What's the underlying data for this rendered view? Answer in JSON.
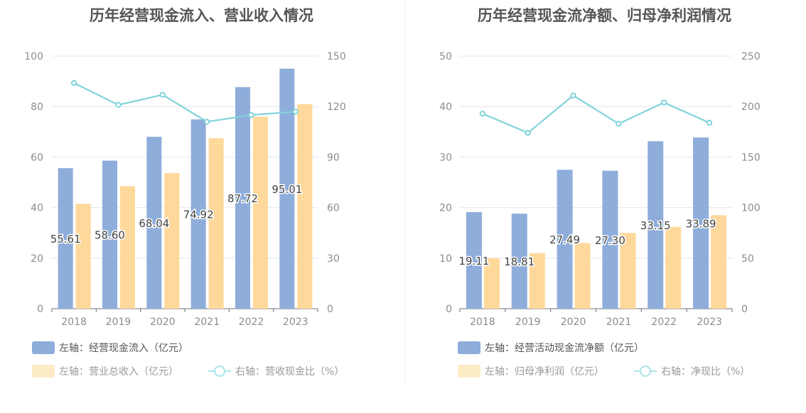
{
  "colors": {
    "inflow_bar": "#8eaddb",
    "revenue_bar": "#ffd99b",
    "ratio_line": "#82d4d9",
    "legend_swatch_2": "#fdebc6",
    "legend_line": "#a9e3e8",
    "grid": "#e3e6ef",
    "axis_text": "#8c8c8c",
    "label_text": "#444444"
  },
  "chart_data": [
    {
      "type": "bar",
      "title": "历年经营现金流入、营业收入情况",
      "categories": [
        "2018",
        "2019",
        "2020",
        "2021",
        "2022",
        "2023"
      ],
      "ylim_left": [
        0,
        100
      ],
      "yticks_left": [
        "0",
        "20",
        "40",
        "60",
        "80",
        "100"
      ],
      "ylim_right": [
        0,
        150
      ],
      "yticks_right": [
        "0",
        "30",
        "60",
        "90",
        "120",
        "150"
      ],
      "series": [
        {
          "name": "左轴：经营现金流入（亿元）",
          "axis": "left",
          "kind": "bar",
          "values": [
            55.61,
            58.6,
            68.04,
            74.92,
            87.72,
            95.01
          ],
          "labels": [
            "55.61",
            "58.60",
            "68.04",
            "74.92",
            "87.72",
            "95.01"
          ]
        },
        {
          "name": "左轴：营业总收入（亿元）",
          "axis": "left",
          "kind": "bar",
          "values": [
            41.5,
            48.5,
            53.7,
            67.5,
            76.0,
            81.0
          ]
        },
        {
          "name": "右轴：营收现金比（%）",
          "axis": "right",
          "kind": "line",
          "values": [
            134,
            121,
            127,
            111,
            115,
            117
          ]
        }
      ]
    },
    {
      "type": "bar",
      "title": "历年经营现金流净额、归母净利润情况",
      "categories": [
        "2018",
        "2019",
        "2020",
        "2021",
        "2022",
        "2023"
      ],
      "ylim_left": [
        0,
        50
      ],
      "yticks_left": [
        "0",
        "10",
        "20",
        "30",
        "40",
        "50"
      ],
      "ylim_right": [
        0,
        250
      ],
      "yticks_right": [
        "0",
        "50",
        "100",
        "150",
        "200",
        "250"
      ],
      "series": [
        {
          "name": "左轴：经营活动现金流净额（亿元）",
          "axis": "left",
          "kind": "bar",
          "values": [
            19.11,
            18.81,
            27.49,
            27.3,
            33.15,
            33.89
          ],
          "labels": [
            "19.11",
            "18.81",
            "27.49",
            "27.30",
            "33.15",
            "33.89"
          ]
        },
        {
          "name": "左轴：归母净利润（亿元）",
          "axis": "left",
          "kind": "bar",
          "values": [
            10.0,
            11.0,
            13.0,
            15.0,
            16.2,
            18.5
          ]
        },
        {
          "name": "右轴：净现比（%）",
          "axis": "right",
          "kind": "line",
          "values": [
            193,
            174,
            211,
            183,
            204,
            184
          ]
        }
      ]
    }
  ]
}
